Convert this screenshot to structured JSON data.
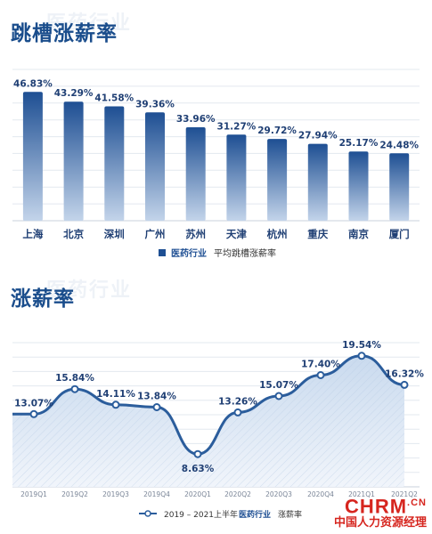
{
  "watermark": "医药行业",
  "section1": {
    "title": "跳槽涨薪率"
  },
  "section2": {
    "title": "涨薪率"
  },
  "chart_data": [
    {
      "type": "bar",
      "categories": [
        "上海",
        "北京",
        "深圳",
        "广州",
        "苏州",
        "天津",
        "杭州",
        "重庆",
        "南京",
        "厦门"
      ],
      "values": [
        46.83,
        43.29,
        41.58,
        39.36,
        33.96,
        31.27,
        29.72,
        27.94,
        25.17,
        24.48
      ],
      "value_labels": [
        "46.83%",
        "43.29%",
        "41.58%",
        "39.36%",
        "33.96%",
        "31.27%",
        "29.72%",
        "27.94%",
        "25.17%",
        "24.48%"
      ],
      "ylim": [
        0,
        55
      ],
      "grid": true,
      "legend": {
        "position": "bottom-center",
        "entries": [
          {
            "prefix": "医药行业",
            "label": "平均跳槽涨薪率"
          }
        ]
      },
      "color_top": "#1e4f93",
      "color_bottom": "#c3d4ea"
    },
    {
      "type": "area",
      "categories": [
        "2019Q1",
        "2019Q2",
        "2019Q3",
        "2019Q4",
        "2020Q1",
        "2020Q2",
        "2020Q3",
        "2020Q4",
        "2021Q1",
        "2021Q2"
      ],
      "values": [
        13.07,
        15.84,
        14.11,
        13.84,
        8.63,
        13.26,
        15.07,
        17.4,
        19.54,
        16.32
      ],
      "value_labels": [
        "13.07%",
        "15.84%",
        "14.11%",
        "13.84%",
        "8.63%",
        "13.26%",
        "15.07%",
        "17.40%",
        "19.54%",
        "16.32%"
      ],
      "ylim": [
        5,
        21
      ],
      "grid": true,
      "legend": {
        "position": "bottom-center",
        "entries": [
          {
            "prefix": "2019 – 2021上半年",
            "highlight": "医药行业",
            "label": "涨薪率"
          }
        ]
      },
      "line_color": "#2b5d9c",
      "fill_color": "#d7e3f1"
    }
  ],
  "branding": {
    "logo": "CHRM",
    "logo_suffix": ".CN",
    "subtitle": "中国人力资源经理"
  }
}
